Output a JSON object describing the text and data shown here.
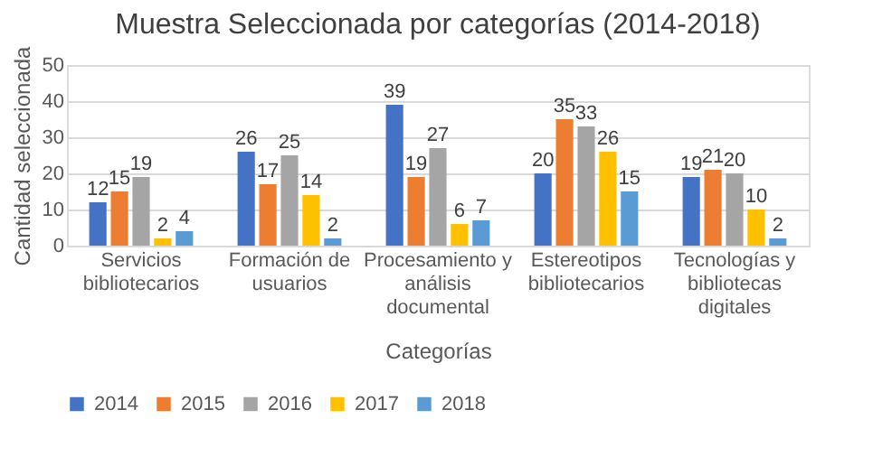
{
  "chart_data": {
    "type": "bar",
    "title": "Muestra Seleccionada por categorías (2014-2018)",
    "xlabel": "Categorías",
    "ylabel": "Cantidad seleccionada",
    "categories": [
      "Servicios\nbibliotecarios",
      "Formación de\nusuarios",
      "Procesamiento y\nanálisis\ndocumental",
      "Estereotipos\nbibliotecarios",
      "Tecnologías y\nbibliotecas\ndigitales"
    ],
    "series": [
      {
        "name": "2014",
        "color": "#4472c4",
        "values": [
          12,
          26,
          39,
          20,
          19
        ]
      },
      {
        "name": "2015",
        "color": "#ed7d31",
        "values": [
          15,
          17,
          19,
          35,
          21
        ]
      },
      {
        "name": "2016",
        "color": "#a5a5a5",
        "values": [
          19,
          25,
          27,
          33,
          20
        ]
      },
      {
        "name": "2017",
        "color": "#ffc000",
        "values": [
          2,
          14,
          6,
          26,
          10
        ]
      },
      {
        "name": "2018",
        "color": "#5b9bd5",
        "values": [
          4,
          2,
          7,
          15,
          2
        ]
      }
    ],
    "ylim": [
      0,
      50
    ],
    "yticks": [
      0,
      10,
      20,
      30,
      40,
      50
    ],
    "grid": "y",
    "legend": "bottom",
    "data_labels": true
  }
}
